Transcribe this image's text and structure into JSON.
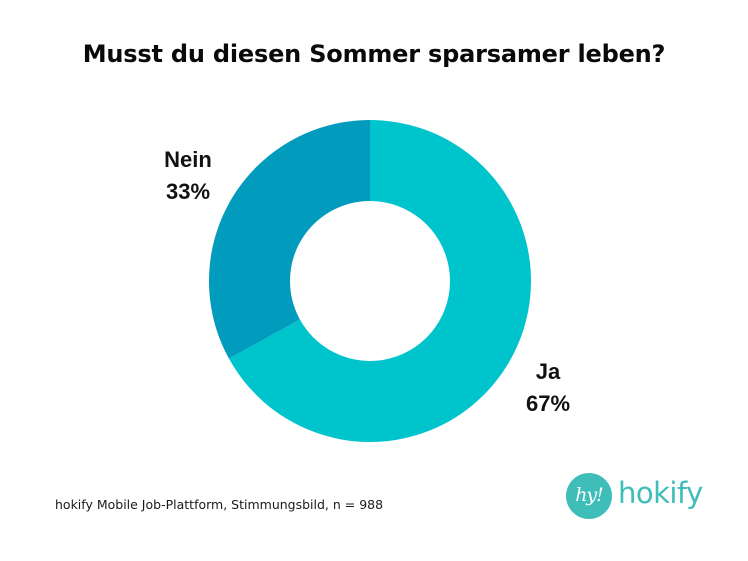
{
  "chart_data": {
    "type": "pie",
    "variant": "donut",
    "title": "Musst du diesen Sommer sparsamer leben?",
    "categories": [
      "Ja",
      "Nein"
    ],
    "values": [
      67,
      33
    ],
    "unit": "%",
    "series": [
      {
        "name": "Ja",
        "value": 67,
        "label": "67%",
        "color": "#00c4cc"
      },
      {
        "name": "Nein",
        "value": 33,
        "label": "33%",
        "color": "#009bbd"
      }
    ],
    "start_angle": "12 o'clock",
    "direction": "clockwise",
    "legend": "none (direct labels)"
  },
  "footer": {
    "source": "hokify Mobile Job-Plattform, Stimmungsbild, n = 988"
  },
  "logo": {
    "badge_text": "hy!",
    "brand_text": "hokify",
    "color": "#3fbdb9"
  }
}
